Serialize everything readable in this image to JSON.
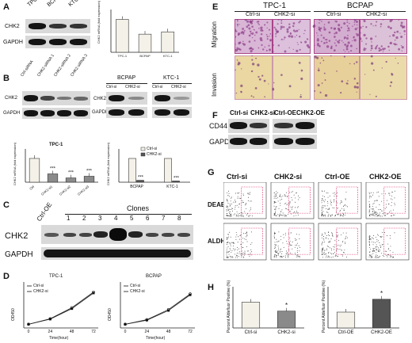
{
  "panels": {
    "A": {
      "label": "A",
      "lanes": [
        "TPC-1",
        "BCPAP",
        "KTC-1"
      ],
      "rows": [
        "CHK2",
        "GAPDH"
      ],
      "chart_data": {
        "type": "bar",
        "categories": [
          "TPC-1",
          "BCPAP",
          "KTC-1"
        ],
        "values": [
          1.0,
          0.55,
          0.62
        ],
        "ylabel": "CHK2 mRNA (fold expression)",
        "ylim": [
          0,
          1.3
        ]
      }
    },
    "B": {
      "label": "B",
      "lanes": [
        "Ctrl-siRNA",
        "CHK2-siRNA 1",
        "CHK2-siRNA 2",
        "CHK2-siRNA 3"
      ],
      "rows": [
        "CHK2",
        "GAPDH"
      ],
      "right_groups": [
        "BCPAP",
        "KTC-1"
      ],
      "right_lanes": [
        "Ctrl-si",
        "CHK2-si",
        "Ctrl-si",
        "CHK2-si"
      ],
      "right_rows": [
        "CHK2",
        "GAPDH"
      ],
      "chart_left": {
        "type": "bar",
        "title": "TPC-1",
        "categories": [
          "Ctrl",
          "CHK2-si1",
          "CHK2-si2",
          "CHK2-si3"
        ],
        "values": [
          1.0,
          0.35,
          0.18,
          0.25
        ],
        "significance": [
          "",
          "***",
          "***",
          "***"
        ],
        "ylabel": "CHK2 mRNA (fold expression)",
        "ylim": [
          0,
          1.4
        ]
      },
      "chart_right": {
        "type": "bar",
        "categories": [
          "BCPAP",
          "KTC-1"
        ],
        "series": [
          {
            "name": "Ctrl-si",
            "values": [
              1.0,
              1.0
            ]
          },
          {
            "name": "CHK2-si",
            "values": [
              0.08,
              0.05
            ]
          }
        ],
        "significance": [
          "***",
          "***"
        ],
        "ylabel": "CHK2 mRNA (fold expression)",
        "ylim": [
          0,
          1.4
        ]
      }
    },
    "C": {
      "label": "C",
      "clones_label": "Clones",
      "lanes": [
        "Ctrl-OE",
        "1",
        "2",
        "3",
        "4",
        "5",
        "6",
        "7",
        "8"
      ],
      "rows": [
        "CHK2",
        "GAPDH"
      ]
    },
    "D": {
      "label": "D",
      "chart_data": [
        {
          "type": "line",
          "title": "TPC-1",
          "x": [
            0,
            24,
            48,
            72
          ],
          "series": [
            {
              "name": "Ctrl-si",
              "values": [
                0.2,
                0.5,
                1.1,
                1.95
              ]
            },
            {
              "name": "CHK2-si",
              "values": [
                0.2,
                0.48,
                1.05,
                1.9
              ]
            }
          ],
          "xlabel": "Time(hour)",
          "ylabel": "OD450",
          "ylim": [
            0,
            2.5
          ]
        },
        {
          "type": "line",
          "title": "BCPAP",
          "x": [
            0,
            24,
            48,
            72
          ],
          "series": [
            {
              "name": "Ctrl-si",
              "values": [
                0.2,
                0.45,
                1.0,
                1.85
              ]
            },
            {
              "name": "CHK2-si",
              "values": [
                0.2,
                0.42,
                0.95,
                1.8
              ]
            }
          ],
          "xlabel": "Time(hour)",
          "ylabel": "OD450",
          "ylim": [
            0,
            2.5
          ]
        }
      ]
    },
    "E": {
      "label": "E",
      "groups": [
        "TPC-1",
        "BCPAP"
      ],
      "columns": [
        "Ctrl-si",
        "CHK2-si",
        "Ctrl-si",
        "CHK2-si"
      ],
      "rows": [
        "Migration",
        "Invasion"
      ]
    },
    "F": {
      "label": "F",
      "lanes": [
        "Ctrl-si",
        "CHK2-si",
        "Ctrl-OE",
        "CHK2-OE"
      ],
      "rows": [
        "CD44",
        "GAPDH"
      ]
    },
    "G": {
      "label": "G",
      "columns": [
        "Ctrl-si",
        "CHK2-si",
        "Ctrl-OE",
        "CHK2-OE"
      ],
      "rows": [
        "DEAB",
        "ALDH"
      ]
    },
    "H": {
      "label": "H",
      "chart_data": [
        {
          "type": "bar",
          "categories": [
            "Ctrl-si",
            "CHK2-si"
          ],
          "values": [
            26,
            17
          ],
          "significance": [
            "",
            "*"
          ],
          "ylabel": "Percent Aldefluor Positive (%)",
          "ylim": [
            0,
            40
          ]
        },
        {
          "type": "bar",
          "categories": [
            "Ctrl-OE",
            "CHK2-OE"
          ],
          "values": [
            3.2,
            5.8
          ],
          "significance": [
            "",
            "*"
          ],
          "ylabel": "Percent Aldefluor Positive (%)",
          "ylim": [
            0,
            8
          ]
        }
      ]
    }
  },
  "colors": {
    "bar_light": "#f4f2e8",
    "bar_mid": "#8a8a8a",
    "bar_dark": "#555555",
    "line": "#222222",
    "micro_migration": "#d9b6d6",
    "micro_invasion": "#ead7a2",
    "facs_gate": "#e0417a"
  }
}
